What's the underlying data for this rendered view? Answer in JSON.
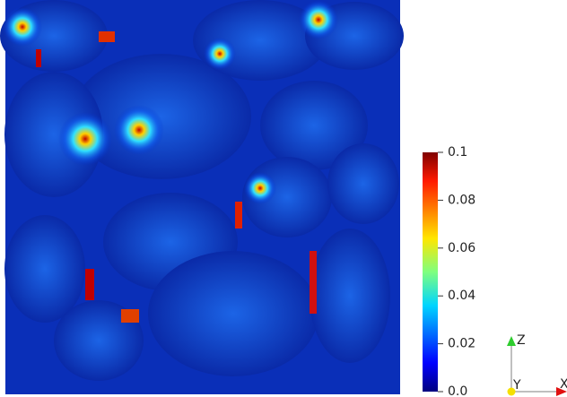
{
  "colorbar": {
    "range": [
      0,
      0.1
    ],
    "ticks": [
      {
        "value": 0,
        "label": "0.0"
      },
      0.02,
      0.04,
      0.06,
      0.08,
      0.1
    ]
  },
  "axes": {
    "z": "Z",
    "y": "Y",
    "x": "X"
  }
}
